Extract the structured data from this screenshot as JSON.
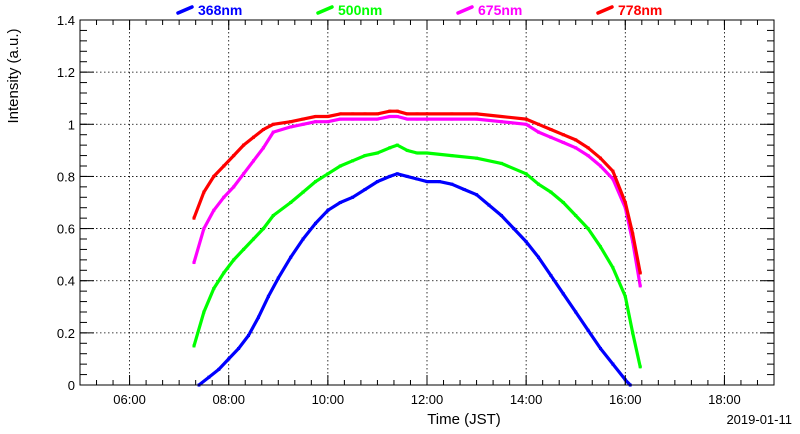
{
  "chart_data": {
    "type": "scatter",
    "title": "",
    "xlabel": "Time (JST)",
    "ylabel": "Intensity (a.u.)",
    "date_label": "2019-01-11",
    "xlim": [
      5,
      19
    ],
    "ylim": [
      0,
      1.4
    ],
    "grid": true,
    "legend_position": "top",
    "x_ticks": [
      {
        "value": 6,
        "label": "06:00"
      },
      {
        "value": 8,
        "label": "08:00"
      },
      {
        "value": 10,
        "label": "10:00"
      },
      {
        "value": 12,
        "label": "12:00"
      },
      {
        "value": 14,
        "label": "14:00"
      },
      {
        "value": 16,
        "label": "16:00"
      },
      {
        "value": 18,
        "label": "18:00"
      }
    ],
    "y_ticks": [
      {
        "value": 0,
        "label": "0"
      },
      {
        "value": 0.2,
        "label": "0.2"
      },
      {
        "value": 0.4,
        "label": "0.4"
      },
      {
        "value": 0.6,
        "label": "0.6"
      },
      {
        "value": 0.8,
        "label": "0.8"
      },
      {
        "value": 1.0,
        "label": "1"
      },
      {
        "value": 1.2,
        "label": "1.2"
      },
      {
        "value": 1.4,
        "label": "1.4"
      }
    ],
    "series": [
      {
        "name": "368nm",
        "color": "#0000ff",
        "x": [
          7.4,
          7.6,
          7.8,
          8.0,
          8.2,
          8.4,
          8.6,
          8.8,
          9.0,
          9.25,
          9.5,
          9.75,
          10.0,
          10.25,
          10.5,
          10.75,
          11.0,
          11.25,
          11.4,
          11.6,
          11.8,
          12.0,
          12.25,
          12.5,
          12.75,
          13.0,
          13.25,
          13.5,
          13.75,
          14.0,
          14.25,
          14.5,
          14.75,
          15.0,
          15.25,
          15.5,
          15.75,
          16.0,
          16.1
        ],
        "y": [
          0.0,
          0.03,
          0.06,
          0.1,
          0.14,
          0.19,
          0.26,
          0.34,
          0.41,
          0.49,
          0.56,
          0.62,
          0.67,
          0.7,
          0.72,
          0.75,
          0.78,
          0.8,
          0.81,
          0.8,
          0.79,
          0.78,
          0.78,
          0.77,
          0.75,
          0.73,
          0.69,
          0.65,
          0.6,
          0.55,
          0.49,
          0.42,
          0.35,
          0.28,
          0.21,
          0.14,
          0.08,
          0.02,
          0.0
        ]
      },
      {
        "name": "500nm",
        "color": "#00ff00",
        "x": [
          7.3,
          7.5,
          7.7,
          7.9,
          8.1,
          8.3,
          8.5,
          8.7,
          8.9,
          9.25,
          9.5,
          9.75,
          10.0,
          10.25,
          10.5,
          10.75,
          11.0,
          11.25,
          11.4,
          11.6,
          11.8,
          12.0,
          12.5,
          13.0,
          13.5,
          14.0,
          14.25,
          14.5,
          14.75,
          15.0,
          15.25,
          15.5,
          15.75,
          16.0,
          16.15,
          16.3
        ],
        "y": [
          0.15,
          0.28,
          0.37,
          0.43,
          0.48,
          0.52,
          0.56,
          0.6,
          0.65,
          0.7,
          0.74,
          0.78,
          0.81,
          0.84,
          0.86,
          0.88,
          0.89,
          0.91,
          0.92,
          0.9,
          0.89,
          0.89,
          0.88,
          0.87,
          0.85,
          0.81,
          0.77,
          0.74,
          0.7,
          0.65,
          0.6,
          0.53,
          0.45,
          0.34,
          0.2,
          0.07
        ]
      },
      {
        "name": "675nm",
        "color": "#ff00ff",
        "x": [
          7.3,
          7.5,
          7.7,
          7.9,
          8.1,
          8.3,
          8.5,
          8.7,
          8.9,
          9.25,
          9.5,
          9.75,
          10.0,
          10.25,
          10.5,
          10.75,
          11.0,
          11.25,
          11.4,
          11.6,
          11.8,
          12.0,
          12.5,
          13.0,
          13.5,
          14.0,
          14.25,
          14.5,
          14.75,
          15.0,
          15.25,
          15.5,
          15.75,
          16.0,
          16.15,
          16.3
        ],
        "y": [
          0.47,
          0.6,
          0.67,
          0.72,
          0.76,
          0.81,
          0.86,
          0.91,
          0.97,
          0.99,
          1.0,
          1.01,
          1.01,
          1.02,
          1.02,
          1.02,
          1.02,
          1.03,
          1.03,
          1.02,
          1.02,
          1.02,
          1.02,
          1.02,
          1.01,
          1.0,
          0.97,
          0.95,
          0.93,
          0.91,
          0.88,
          0.84,
          0.79,
          0.68,
          0.55,
          0.38
        ]
      },
      {
        "name": "778nm",
        "color": "#ff0000",
        "x": [
          7.3,
          7.5,
          7.7,
          7.9,
          8.1,
          8.3,
          8.5,
          8.7,
          8.9,
          9.25,
          9.5,
          9.75,
          10.0,
          10.25,
          10.5,
          10.75,
          11.0,
          11.25,
          11.4,
          11.6,
          11.8,
          12.0,
          12.5,
          13.0,
          13.5,
          14.0,
          14.25,
          14.5,
          14.75,
          15.0,
          15.25,
          15.5,
          15.75,
          16.0,
          16.15,
          16.3
        ],
        "y": [
          0.64,
          0.74,
          0.8,
          0.84,
          0.88,
          0.92,
          0.95,
          0.98,
          1.0,
          1.01,
          1.02,
          1.03,
          1.03,
          1.04,
          1.04,
          1.04,
          1.04,
          1.05,
          1.05,
          1.04,
          1.04,
          1.04,
          1.04,
          1.04,
          1.03,
          1.02,
          1.0,
          0.98,
          0.96,
          0.94,
          0.91,
          0.87,
          0.82,
          0.7,
          0.58,
          0.43
        ]
      }
    ]
  }
}
